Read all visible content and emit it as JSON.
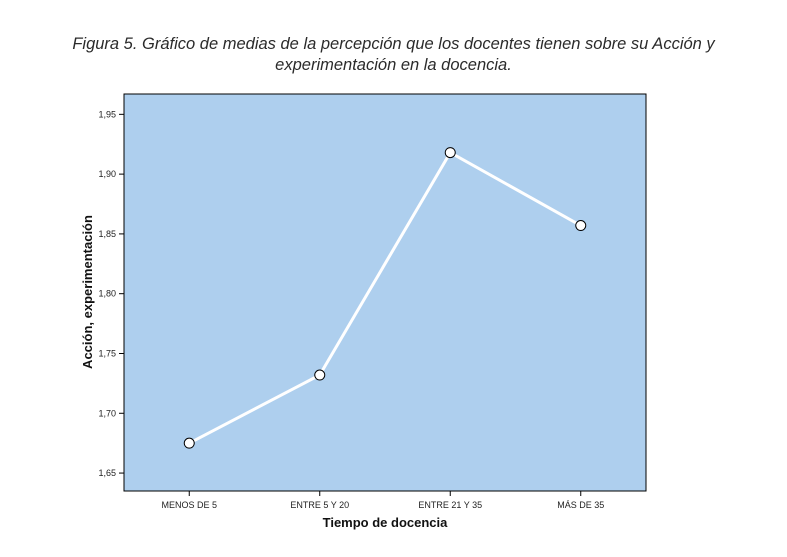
{
  "caption": {
    "line1": "Figura 5. Gráfico de medias de la percepción que los docentes tienen sobre su Acción y",
    "line2": "experimentación en la docencia."
  },
  "colors": {
    "plot_bg": "#aecfee",
    "line": "#ffffff",
    "marker_fill": "#ffffff",
    "marker_stroke": "#000000",
    "frame": "#000000"
  },
  "chart_data": {
    "type": "line",
    "title": "",
    "xlabel": "Tiempo de docencia",
    "ylabel": "Acción, experimentación",
    "categories": [
      "MENOS DE 5",
      "ENTRE 5 Y 20",
      "ENTRE 21 Y 35",
      "MÁS DE 35"
    ],
    "series": [
      {
        "values": [
          1.675,
          1.732,
          1.918,
          1.857
        ]
      }
    ],
    "ylim": [
      1.635,
      1.967
    ],
    "yticks": [
      1.65,
      1.7,
      1.75,
      1.8,
      1.85,
      1.9,
      1.95
    ],
    "ytick_labels": [
      "1,65",
      "1,70",
      "1,75",
      "1,80",
      "1,85",
      "1,90",
      "1,95"
    ],
    "grid": false,
    "legend": "none"
  }
}
